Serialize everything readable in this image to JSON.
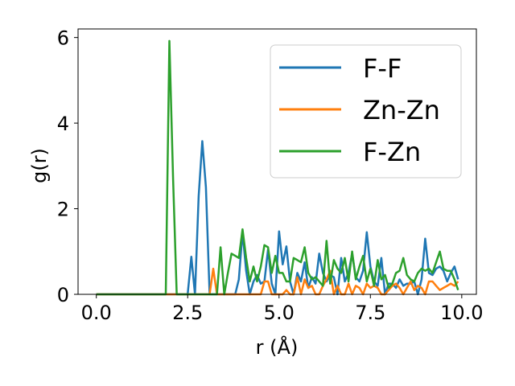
{
  "chart_data": {
    "type": "line",
    "title": "",
    "xlabel": "r (Å)",
    "ylabel": "g(r)",
    "xlim": [
      -0.5,
      10.4
    ],
    "ylim": [
      0,
      6.2
    ],
    "xticks": [
      0.0,
      2.5,
      5.0,
      7.5,
      10.0
    ],
    "xtick_labels": [
      "0.0",
      "2.5",
      "5.0",
      "7.5",
      "10.0"
    ],
    "yticks": [
      0,
      2,
      4,
      6
    ],
    "ytick_labels": [
      "0",
      "2",
      "4",
      "6"
    ],
    "grid": false,
    "legend_position": "top-right",
    "series": [
      {
        "name": "F-F",
        "color": "#1f77b4",
        "x": [
          0.0,
          2.5,
          2.6,
          2.7,
          2.8,
          2.9,
          3.0,
          3.1,
          3.2,
          3.3,
          3.4,
          3.5,
          3.6,
          3.7,
          3.8,
          3.9,
          4.0,
          4.1,
          4.2,
          4.3,
          4.4,
          4.5,
          4.6,
          4.7,
          4.8,
          4.9,
          5.0,
          5.1,
          5.2,
          5.3,
          5.4,
          5.5,
          5.6,
          5.7,
          5.8,
          5.9,
          6.0,
          6.1,
          6.2,
          6.3,
          6.4,
          6.5,
          6.6,
          6.7,
          6.8,
          6.9,
          7.0,
          7.1,
          7.2,
          7.3,
          7.4,
          7.5,
          7.6,
          7.7,
          7.8,
          7.9,
          8.0,
          8.1,
          8.2,
          8.3,
          8.4,
          8.5,
          8.6,
          8.7,
          8.8,
          8.9,
          9.0,
          9.1,
          9.2,
          9.3,
          9.4,
          9.5,
          9.6,
          9.7,
          9.8,
          9.9
        ],
        "y": [
          0,
          0,
          0.88,
          0,
          2.3,
          3.58,
          2.5,
          0,
          0,
          0,
          0,
          0,
          0,
          0,
          0,
          0.35,
          1.45,
          0.55,
          0,
          0.3,
          0.45,
          0.25,
          0.3,
          1.05,
          0.25,
          0,
          1.47,
          0.7,
          1.12,
          0.3,
          0,
          0.5,
          0.3,
          0.75,
          0.15,
          0.4,
          0.25,
          0.95,
          0.5,
          0.3,
          0.45,
          0.4,
          0,
          0.85,
          0.3,
          0.5,
          0.95,
          0.4,
          0.3,
          0.55,
          1.45,
          0.65,
          0.3,
          0.2,
          0.85,
          0,
          0.25,
          0.25,
          0.15,
          0.35,
          0.2,
          0.25,
          0.25,
          0.3,
          0,
          0.35,
          1.3,
          0.5,
          0.45,
          0.6,
          0.65,
          0.55,
          0.3,
          0.5,
          0.65,
          0.35
        ]
      },
      {
        "name": "Zn-Zn",
        "color": "#ff7f0e",
        "x": [
          0.0,
          3.1,
          3.2,
          3.3,
          3.4,
          3.5,
          3.6,
          3.7,
          3.8,
          3.9,
          4.0,
          4.1,
          4.2,
          4.3,
          4.4,
          4.5,
          4.6,
          4.7,
          4.8,
          4.9,
          5.0,
          5.1,
          5.2,
          5.3,
          5.4,
          5.5,
          5.6,
          5.7,
          5.8,
          5.9,
          6.0,
          6.1,
          6.2,
          6.3,
          6.4,
          6.5,
          6.6,
          6.7,
          6.8,
          6.9,
          7.0,
          7.1,
          7.2,
          7.3,
          7.4,
          7.5,
          7.6,
          7.7,
          7.8,
          7.9,
          8.0,
          8.1,
          8.2,
          8.3,
          8.4,
          8.5,
          8.6,
          8.7,
          8.8,
          8.9,
          9.0,
          9.1,
          9.2,
          9.3,
          9.4,
          9.5,
          9.6,
          9.7,
          9.8,
          9.9
        ],
        "y": [
          0,
          0,
          0.6,
          0,
          0,
          0,
          0,
          0,
          0,
          0,
          0,
          0,
          0,
          0,
          0,
          0,
          0.3,
          0.3,
          0,
          0,
          0,
          0,
          0.1,
          0,
          0,
          0.4,
          0,
          0.35,
          0.15,
          0.2,
          0,
          0,
          0.2,
          0.35,
          0.55,
          0,
          0.2,
          0,
          0,
          0.25,
          0,
          0.2,
          0.15,
          0,
          0.25,
          0.15,
          0.2,
          0.15,
          0,
          0,
          0.1,
          0.2,
          0.25,
          0.15,
          0,
          0.15,
          0.3,
          0.1,
          0.2,
          0.15,
          0,
          0.3,
          0.3,
          0.2,
          0.1,
          0.15,
          0.2,
          0.25,
          0.2,
          0.3
        ]
      },
      {
        "name": "F-Zn",
        "color": "#2ca02c",
        "x": [
          0.0,
          1.9,
          2.0,
          2.1,
          2.2,
          3.3,
          3.4,
          3.5,
          3.6,
          3.7,
          3.8,
          3.9,
          4.0,
          4.1,
          4.2,
          4.3,
          4.4,
          4.5,
          4.6,
          4.7,
          4.8,
          4.9,
          5.0,
          5.1,
          5.2,
          5.3,
          5.4,
          5.5,
          5.6,
          5.7,
          5.8,
          5.9,
          6.0,
          6.1,
          6.2,
          6.3,
          6.4,
          6.5,
          6.6,
          6.7,
          6.8,
          6.9,
          7.0,
          7.1,
          7.2,
          7.3,
          7.4,
          7.5,
          7.6,
          7.7,
          7.8,
          7.9,
          8.0,
          8.1,
          8.2,
          8.3,
          8.4,
          8.5,
          8.6,
          8.7,
          8.8,
          8.9,
          9.0,
          9.1,
          9.2,
          9.3,
          9.4,
          9.5,
          9.6,
          9.7,
          9.8,
          9.9
        ],
        "y": [
          0,
          0,
          5.92,
          2.7,
          0,
          0,
          1.1,
          0,
          0.5,
          0.95,
          0.9,
          0.85,
          1.52,
          0.85,
          0.3,
          0.65,
          0.3,
          0.65,
          1.15,
          1.1,
          0.5,
          0.9,
          0.5,
          0.5,
          0.3,
          0.3,
          0.85,
          0.8,
          0.75,
          1.1,
          0.5,
          0.35,
          0.4,
          0.3,
          0.2,
          1.25,
          0.25,
          0.8,
          0.6,
          0.5,
          0.85,
          0.3,
          1.0,
          0.35,
          0.65,
          0.9,
          0.3,
          0.6,
          0.2,
          0.8,
          0.35,
          0.45,
          0.15,
          0.25,
          0.5,
          0.55,
          0.85,
          0.45,
          0.35,
          0.3,
          0.5,
          0.6,
          0.55,
          0.6,
          0.5,
          0.75,
          1.0,
          0.6,
          0.55,
          0.55,
          0.35,
          0.1
        ]
      }
    ]
  }
}
